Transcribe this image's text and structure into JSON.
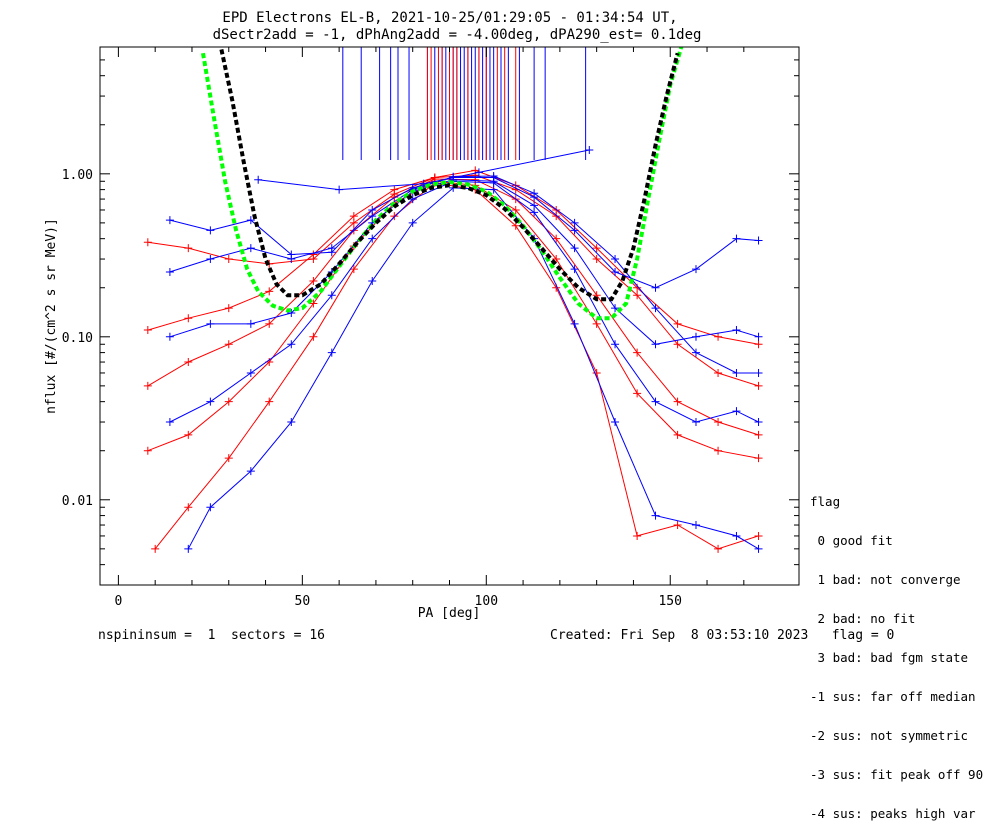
{
  "title": {
    "line1": "EPD Electrons EL-B, 2021-10-25/01:29:05 - 01:34:54 UT,",
    "line2": "dSectr2add = -1, dPhAng2add = -4.00deg, dPA290_est=   0.1deg"
  },
  "footer": {
    "left": "nspininsum =  1  sectors = 16",
    "right": "Created: Fri Sep  8 03:53:10 2023   flag = 0"
  },
  "legend": {
    "title": "flag",
    "items": [
      " 0 good fit",
      " 1 bad: not converge",
      " 2 bad: no fit",
      " 3 bad: bad fgm state",
      "-1 sus: far off median",
      "-2 sus: not symmetric",
      "-3 sus: fit peak off 90",
      "-4 sus: peaks high var"
    ]
  },
  "colors": {
    "red": "#ff0000",
    "blue": "#0000ff",
    "green": "#00ff00",
    "black": "#000000"
  },
  "chart_data": {
    "type": "line",
    "xlabel": "PA [deg]",
    "ylabel": "nflux [#/(cm^2 s sr MeV)]",
    "xlim": [
      -5,
      185
    ],
    "ylim": [
      0.003,
      6
    ],
    "yscale": "log",
    "xticks": [
      0,
      50,
      100,
      150
    ],
    "yticks": [
      0.01,
      0.1,
      1.0
    ],
    "ytick_labels": [
      "0.01",
      "0.10",
      "1.00"
    ],
    "minor_xticks": [
      10,
      20,
      30,
      40,
      60,
      70,
      80,
      90,
      110,
      120,
      130,
      140,
      160,
      170
    ],
    "series": [
      {
        "color": "red",
        "pa": [
          8,
          19,
          30,
          41,
          53,
          64,
          75,
          86,
          97,
          108,
          119,
          130,
          141,
          152,
          163,
          174
        ],
        "flux": [
          0.11,
          0.13,
          0.15,
          0.19,
          0.32,
          0.55,
          0.8,
          0.95,
          1.05,
          0.85,
          0.6,
          0.35,
          0.2,
          0.12,
          0.1,
          0.09
        ]
      },
      {
        "color": "red",
        "pa": [
          8,
          19,
          30,
          41,
          53,
          64,
          75,
          86,
          97,
          108,
          119,
          130,
          141,
          152,
          163,
          174
        ],
        "flux": [
          0.02,
          0.025,
          0.04,
          0.07,
          0.16,
          0.36,
          0.66,
          0.9,
          0.85,
          0.6,
          0.3,
          0.12,
          0.045,
          0.025,
          0.02,
          0.018
        ]
      },
      {
        "color": "red",
        "pa": [
          10,
          19,
          30,
          41,
          53,
          64,
          75,
          86,
          97,
          108,
          119,
          130,
          141,
          152,
          163,
          174
        ],
        "flux": [
          0.005,
          0.009,
          0.018,
          0.04,
          0.1,
          0.26,
          0.55,
          0.88,
          0.8,
          0.48,
          0.2,
          0.06,
          0.006,
          0.007,
          0.005,
          0.006
        ]
      },
      {
        "color": "red",
        "pa": [
          8,
          19,
          30,
          41,
          53,
          64,
          75,
          86,
          97,
          108,
          119,
          130,
          141,
          152,
          163,
          174
        ],
        "flux": [
          0.38,
          0.35,
          0.3,
          0.28,
          0.3,
          0.5,
          0.75,
          0.95,
          0.98,
          0.8,
          0.55,
          0.3,
          0.18,
          0.09,
          0.06,
          0.05
        ]
      },
      {
        "color": "red",
        "pa": [
          8,
          19,
          30,
          41,
          53,
          64,
          75,
          86,
          97,
          108,
          119,
          130,
          141,
          152,
          163,
          174
        ],
        "flux": [
          0.05,
          0.07,
          0.09,
          0.12,
          0.22,
          0.45,
          0.72,
          0.93,
          0.92,
          0.7,
          0.4,
          0.18,
          0.08,
          0.04,
          0.03,
          0.025
        ]
      },
      {
        "color": "blue",
        "pa": [
          14,
          25,
          36,
          47,
          58,
          69,
          80,
          91,
          102,
          113,
          124,
          135,
          146,
          157,
          168,
          174
        ],
        "flux": [
          0.52,
          0.45,
          0.52,
          0.32,
          0.33,
          0.6,
          0.82,
          0.95,
          0.95,
          0.72,
          0.45,
          0.25,
          0.2,
          0.26,
          0.4,
          0.39
        ]
      },
      {
        "color": "blue",
        "pa": [
          14,
          25,
          36,
          47,
          58,
          69,
          80,
          91,
          102,
          113,
          124,
          135,
          146,
          157,
          168,
          174
        ],
        "flux": [
          0.1,
          0.12,
          0.12,
          0.14,
          0.25,
          0.5,
          0.78,
          0.92,
          0.9,
          0.64,
          0.35,
          0.15,
          0.09,
          0.1,
          0.11,
          0.1
        ]
      },
      {
        "color": "blue",
        "pa": [
          14,
          25,
          36,
          47,
          58,
          69,
          80,
          91,
          102,
          113,
          124,
          135,
          146,
          157,
          168,
          174
        ],
        "flux": [
          0.03,
          0.04,
          0.06,
          0.09,
          0.18,
          0.4,
          0.7,
          0.9,
          0.88,
          0.58,
          0.26,
          0.09,
          0.04,
          0.03,
          0.035,
          0.03
        ]
      },
      {
        "color": "blue",
        "pa": [
          19,
          25,
          36,
          47,
          58,
          69,
          80,
          91,
          102,
          113,
          124,
          135,
          146,
          157,
          168,
          174
        ],
        "flux": [
          0.005,
          0.009,
          0.015,
          0.03,
          0.08,
          0.22,
          0.5,
          0.82,
          0.8,
          0.4,
          0.12,
          0.03,
          0.008,
          0.007,
          0.006,
          0.005
        ]
      },
      {
        "color": "blue",
        "pa": [
          14,
          25,
          36,
          47,
          58,
          69,
          80,
          91,
          102,
          113,
          124,
          135,
          146,
          157,
          168,
          174
        ],
        "flux": [
          0.25,
          0.3,
          0.35,
          0.3,
          0.35,
          0.55,
          0.8,
          0.96,
          0.97,
          0.76,
          0.5,
          0.3,
          0.15,
          0.08,
          0.06,
          0.06
        ]
      },
      {
        "color": "blue",
        "pa": [
          38,
          60,
          83,
          98,
          128
        ],
        "flux": [
          0.92,
          0.8,
          0.87,
          1.02,
          1.4
        ]
      }
    ],
    "fit_green": {
      "color": "green",
      "pa": [
        23,
        26,
        29,
        32,
        35,
        38,
        42,
        46,
        50,
        55,
        60,
        65,
        70,
        75,
        80,
        85,
        90,
        95,
        100,
        105,
        110,
        115,
        120,
        125,
        130,
        134,
        138,
        141,
        144,
        147,
        150,
        153
      ],
      "flux": [
        5.5,
        2.2,
        0.9,
        0.45,
        0.26,
        0.19,
        0.155,
        0.145,
        0.15,
        0.19,
        0.27,
        0.38,
        0.52,
        0.66,
        0.78,
        0.86,
        0.89,
        0.86,
        0.78,
        0.64,
        0.48,
        0.34,
        0.23,
        0.16,
        0.13,
        0.13,
        0.16,
        0.3,
        0.7,
        1.6,
        3.5,
        6.0
      ]
    },
    "fit_black": {
      "color": "black",
      "pa": [
        28,
        31,
        34,
        37,
        40,
        43,
        46,
        50,
        55,
        60,
        65,
        70,
        75,
        80,
        85,
        90,
        95,
        100,
        105,
        110,
        115,
        120,
        125,
        130,
        134,
        137,
        140,
        143,
        146,
        149,
        152
      ],
      "flux": [
        5.8,
        2.8,
        1.2,
        0.55,
        0.3,
        0.21,
        0.18,
        0.18,
        0.21,
        0.28,
        0.38,
        0.5,
        0.63,
        0.74,
        0.82,
        0.85,
        0.82,
        0.74,
        0.61,
        0.47,
        0.35,
        0.26,
        0.2,
        0.17,
        0.17,
        0.22,
        0.35,
        0.7,
        1.5,
        3.0,
        5.5
      ]
    },
    "peak_markers": {
      "blue": [
        61,
        66,
        71,
        74,
        76,
        79,
        84,
        86,
        88,
        89,
        90,
        91,
        92,
        93,
        94,
        95,
        96,
        97,
        98,
        99,
        100,
        101,
        102,
        104,
        106,
        109,
        113,
        116,
        127
      ],
      "red": [
        84,
        85,
        87,
        88,
        90,
        91,
        92,
        95,
        98,
        100,
        103,
        105,
        108
      ]
    }
  }
}
